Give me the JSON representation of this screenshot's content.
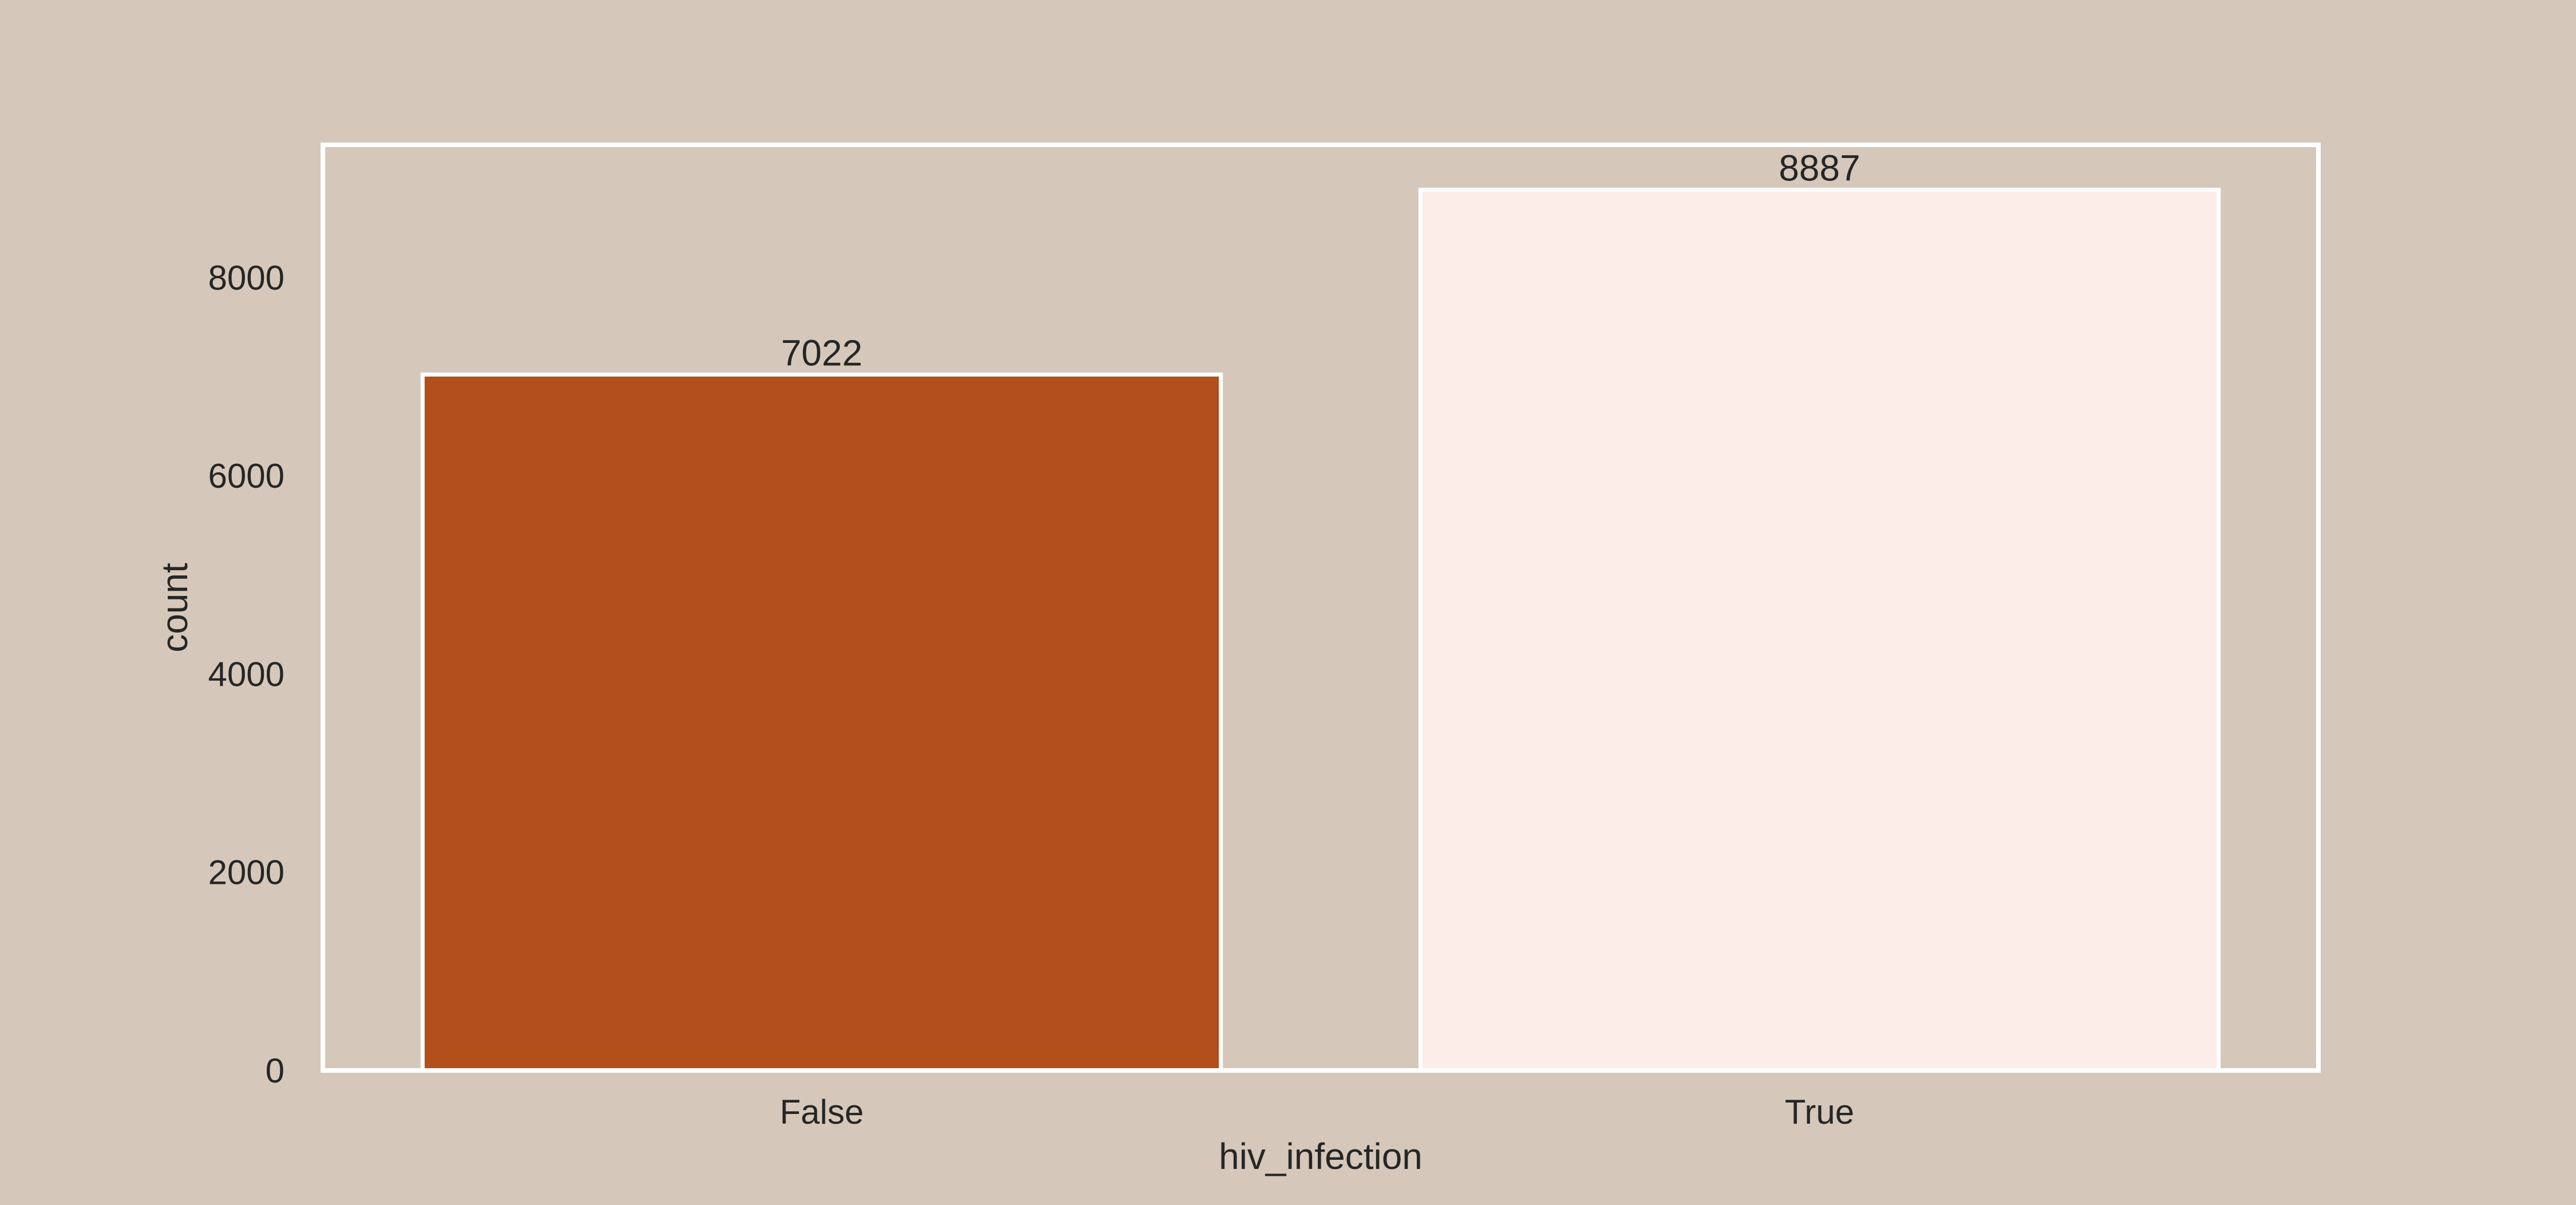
{
  "chart_data": {
    "type": "bar",
    "title": "",
    "xlabel": "hiv_infection",
    "ylabel": "count",
    "categories": [
      "False",
      "True"
    ],
    "values": [
      7022,
      8887
    ],
    "data_labels": [
      "7022",
      "8887"
    ],
    "colors": [
      "#b34f1b",
      "#fcede8"
    ],
    "ylim": [
      0,
      9340
    ],
    "yticks": [
      0,
      2000,
      4000,
      6000,
      8000
    ],
    "ytick_labels": [
      "0",
      "2000",
      "4000",
      "6000",
      "8000"
    ],
    "grid": false,
    "legend": "none",
    "background": "#d5c8ba",
    "edge_color": "#ffffff"
  }
}
